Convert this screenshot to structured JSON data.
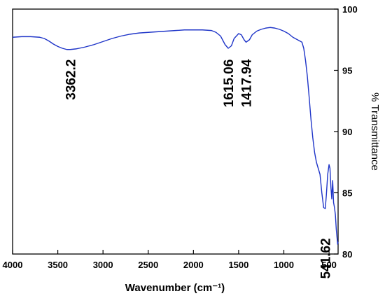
{
  "chart_data": {
    "type": "line",
    "title": "",
    "xlabel": "Wavenumber (cm⁻¹)",
    "ylabel": "% Transmittance",
    "x_reversed": true,
    "xlim": [
      4000,
      400
    ],
    "ylim": [
      80,
      100
    ],
    "x_ticks": [
      4000,
      3500,
      3000,
      2500,
      2000,
      1500,
      1000,
      500
    ],
    "y_ticks": [
      80,
      85,
      90,
      95,
      100
    ],
    "y_axis_side": "right",
    "grid": false,
    "series": [
      {
        "color": "#1f35c8",
        "x": [
          4000,
          3900,
          3800,
          3700,
          3650,
          3600,
          3550,
          3500,
          3450,
          3400,
          3362,
          3300,
          3200,
          3100,
          3000,
          2900,
          2800,
          2700,
          2600,
          2500,
          2400,
          2300,
          2200,
          2100,
          2000,
          1900,
          1800,
          1750,
          1700,
          1650,
          1615,
          1580,
          1550,
          1500,
          1470,
          1440,
          1418,
          1380,
          1350,
          1300,
          1250,
          1200,
          1150,
          1100,
          1050,
          1000,
          950,
          900,
          850,
          800,
          780,
          760,
          740,
          720,
          700,
          680,
          660,
          640,
          620,
          600,
          580,
          560,
          542,
          530,
          515,
          500,
          490,
          480,
          470,
          460,
          450,
          440,
          430,
          420,
          410,
          405,
          400
        ],
        "y": [
          97.7,
          97.75,
          97.75,
          97.7,
          97.6,
          97.4,
          97.15,
          96.95,
          96.8,
          96.7,
          96.7,
          96.75,
          96.9,
          97.1,
          97.35,
          97.6,
          97.8,
          97.95,
          98.05,
          98.1,
          98.15,
          98.2,
          98.25,
          98.3,
          98.3,
          98.3,
          98.25,
          98.1,
          97.8,
          97.1,
          96.8,
          97.0,
          97.6,
          98.0,
          97.9,
          97.5,
          97.3,
          97.5,
          97.9,
          98.2,
          98.35,
          98.45,
          98.5,
          98.45,
          98.35,
          98.2,
          98.0,
          97.7,
          97.5,
          97.3,
          96.8,
          95.8,
          94.5,
          92.8,
          91.0,
          89.5,
          88.3,
          87.5,
          87.0,
          86.5,
          85.0,
          83.8,
          83.7,
          84.8,
          86.5,
          87.3,
          87.0,
          85.5,
          84.5,
          86.0,
          84.2,
          83.8,
          83.2,
          82.0,
          81.2,
          80.8,
          81.0
        ]
      }
    ],
    "annotations": [
      {
        "text": "3362.2",
        "x": 3362,
        "y": 95.9
      },
      {
        "text": "1615.06",
        "x": 1615,
        "y": 95.9
      },
      {
        "text": "1417.94",
        "x": 1418,
        "y": 95.9
      },
      {
        "text": "541.62",
        "x": 542,
        "y": 81.3
      }
    ]
  }
}
